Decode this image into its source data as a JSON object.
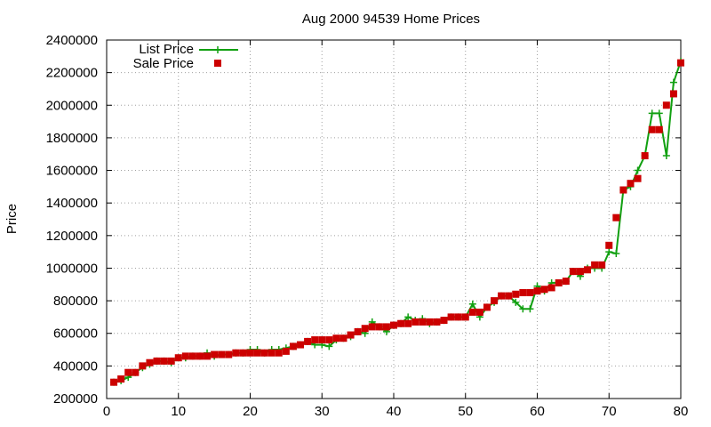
{
  "chart_data": {
    "type": "line",
    "title": "Aug 2000 94539 Home Prices",
    "xlabel": "",
    "ylabel": "Price",
    "xlim": [
      0,
      80
    ],
    "ylim": [
      200000,
      2400000
    ],
    "x_ticks": [
      0,
      10,
      20,
      30,
      40,
      50,
      60,
      70,
      80
    ],
    "y_ticks": [
      200000,
      400000,
      600000,
      800000,
      1000000,
      1200000,
      1400000,
      1600000,
      1800000,
      2000000,
      2200000,
      2400000
    ],
    "grid": true,
    "legend_position": "top-left",
    "series": [
      {
        "name": "List Price",
        "style": "line-plus",
        "color": "#11a011",
        "x": [
          1,
          2,
          3,
          4,
          5,
          6,
          7,
          8,
          9,
          10,
          11,
          12,
          13,
          14,
          15,
          16,
          17,
          18,
          19,
          20,
          21,
          22,
          23,
          24,
          25,
          26,
          27,
          28,
          29,
          30,
          31,
          32,
          33,
          34,
          35,
          36,
          37,
          38,
          39,
          40,
          41,
          42,
          43,
          44,
          45,
          46,
          47,
          48,
          49,
          50,
          51,
          52,
          53,
          54,
          55,
          56,
          57,
          58,
          59,
          60,
          61,
          62,
          63,
          64,
          65,
          66,
          67,
          68,
          69,
          70,
          71,
          72,
          73,
          74,
          75,
          76,
          77,
          78,
          79,
          80
        ],
        "values": [
          300000,
          310000,
          330000,
          360000,
          390000,
          410000,
          430000,
          430000,
          420000,
          450000,
          450000,
          460000,
          460000,
          480000,
          460000,
          470000,
          470000,
          480000,
          480000,
          500000,
          500000,
          480000,
          500000,
          500000,
          510000,
          520000,
          530000,
          550000,
          530000,
          530000,
          520000,
          560000,
          570000,
          580000,
          610000,
          600000,
          670000,
          640000,
          610000,
          650000,
          660000,
          700000,
          680000,
          690000,
          660000,
          670000,
          680000,
          700000,
          700000,
          700000,
          780000,
          700000,
          760000,
          790000,
          830000,
          830000,
          790000,
          750000,
          750000,
          890000,
          860000,
          910000,
          910000,
          920000,
          980000,
          950000,
          1000000,
          1000000,
          1000000,
          1100000,
          1090000,
          1480000,
          1500000,
          1600000,
          1690000,
          1950000,
          1950000,
          1690000,
          2140000,
          2270000
        ]
      },
      {
        "name": "Sale Price",
        "style": "square-points",
        "color": "#cc0000",
        "x": [
          1,
          2,
          3,
          4,
          5,
          6,
          7,
          8,
          9,
          10,
          11,
          12,
          13,
          14,
          15,
          16,
          17,
          18,
          19,
          20,
          21,
          22,
          23,
          24,
          25,
          26,
          27,
          28,
          29,
          30,
          31,
          32,
          33,
          34,
          35,
          36,
          37,
          38,
          39,
          40,
          41,
          42,
          43,
          44,
          45,
          46,
          47,
          48,
          49,
          50,
          51,
          52,
          53,
          54,
          55,
          56,
          57,
          58,
          59,
          60,
          61,
          62,
          63,
          64,
          65,
          66,
          67,
          68,
          69,
          70,
          71,
          72,
          73,
          74,
          75,
          76,
          77,
          78,
          79,
          80
        ],
        "values": [
          300000,
          320000,
          360000,
          360000,
          400000,
          420000,
          430000,
          430000,
          430000,
          450000,
          460000,
          460000,
          460000,
          460000,
          470000,
          470000,
          470000,
          480000,
          480000,
          480000,
          480000,
          480000,
          480000,
          480000,
          490000,
          520000,
          530000,
          550000,
          560000,
          560000,
          560000,
          570000,
          570000,
          590000,
          610000,
          630000,
          640000,
          640000,
          640000,
          650000,
          660000,
          660000,
          670000,
          670000,
          670000,
          670000,
          680000,
          700000,
          700000,
          700000,
          730000,
          730000,
          760000,
          800000,
          830000,
          830000,
          840000,
          850000,
          850000,
          860000,
          870000,
          880000,
          910000,
          920000,
          980000,
          980000,
          990000,
          1020000,
          1020000,
          1140000,
          1310000,
          1480000,
          1520000,
          1550000,
          1690000,
          1850000,
          1850000,
          2000000,
          2070000,
          2260000
        ]
      }
    ]
  }
}
